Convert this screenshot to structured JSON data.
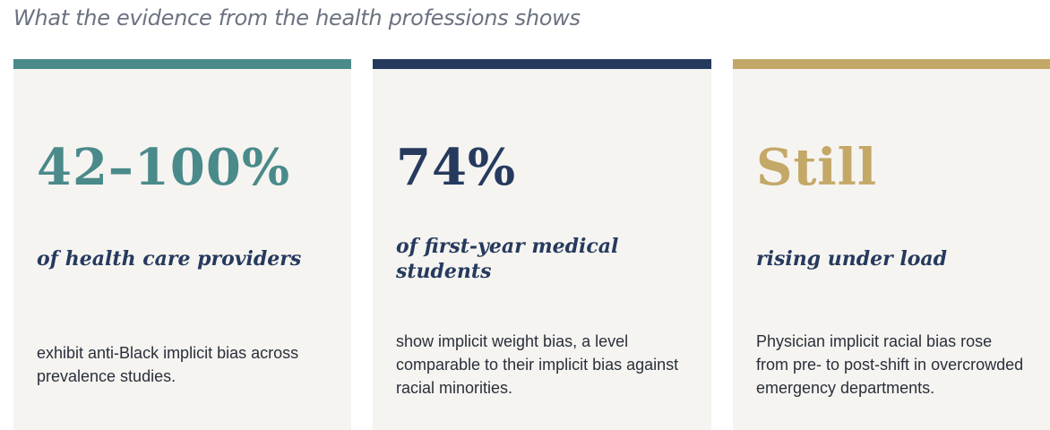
{
  "header": {
    "title": "What the evidence from the health professions shows"
  },
  "cards": [
    {
      "stat": "42–100%",
      "subtitle": "of health care providers",
      "body": "exhibit anti-Black implicit bias across prevalence studies."
    },
    {
      "stat": "74%",
      "subtitle": "of first-year medical students",
      "body": "show implicit weight bias, a level comparable to their implicit bias against racial minorities."
    },
    {
      "stat": "Still",
      "subtitle": "rising under load",
      "body": "Physician implicit racial bias rose from pre- to post-shift in overcrowded emergency departments."
    }
  ]
}
